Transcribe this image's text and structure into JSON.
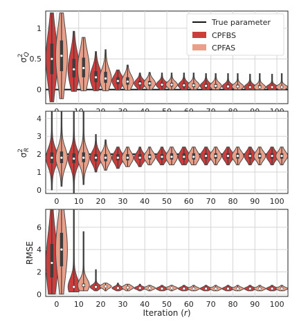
{
  "chart_data": {
    "type": "violin",
    "x_tick_labels": [
      "0",
      "10",
      "20",
      "30",
      "40",
      "50",
      "60",
      "70",
      "80",
      "90",
      "100"
    ],
    "xlabel": "Iteration (r)",
    "grid": true,
    "legend": {
      "placement": "top-right",
      "entries": [
        {
          "label": "True parameter",
          "kind": "line",
          "color": "#111111"
        },
        {
          "label": "CPFBS",
          "kind": "patch",
          "color": "#cc3d3d"
        },
        {
          "label": "CPFAS",
          "kind": "patch",
          "color": "#e8a08a"
        }
      ]
    },
    "panels": [
      {
        "ylabel": "σ_Q^2",
        "ylim": [
          -0.23,
          1.28
        ],
        "yticks": [
          0.0,
          0.5,
          1.0
        ],
        "true_value": 0.0,
        "series": [
          {
            "name": "CPFBS",
            "color": "#cc3d3d",
            "min": [
              -0.2,
              -0.03,
              -0.02,
              -0.01,
              0.0,
              0.0,
              0.0,
              0.0,
              0.0,
              0.0,
              0.0
            ],
            "max": [
              1.25,
              0.95,
              0.62,
              0.32,
              0.27,
              0.27,
              0.27,
              0.26,
              0.26,
              0.25,
              0.25
            ],
            "median": [
              0.5,
              0.33,
              0.2,
              0.14,
              0.1,
              0.08,
              0.07,
              0.06,
              0.05,
              0.04,
              0.04
            ],
            "q1": [
              0.25,
              0.2,
              0.12,
              0.09,
              0.07,
              0.05,
              0.04,
              0.03,
              0.03,
              0.02,
              0.02
            ],
            "q3": [
              0.75,
              0.5,
              0.3,
              0.2,
              0.14,
              0.11,
              0.1,
              0.09,
              0.08,
              0.07,
              0.06
            ]
          },
          {
            "name": "CPFAS",
            "color": "#e8a08a",
            "min": [
              -0.15,
              -0.02,
              -0.02,
              -0.01,
              0.0,
              0.0,
              0.0,
              0.0,
              0.0,
              0.0,
              0.0
            ],
            "max": [
              1.25,
              0.85,
              0.65,
              0.4,
              0.28,
              0.27,
              0.27,
              0.26,
              0.26,
              0.26,
              0.26
            ],
            "median": [
              0.55,
              0.35,
              0.18,
              0.13,
              0.1,
              0.08,
              0.07,
              0.06,
              0.05,
              0.04,
              0.04
            ],
            "q1": [
              0.3,
              0.2,
              0.11,
              0.08,
              0.06,
              0.05,
              0.04,
              0.03,
              0.03,
              0.02,
              0.02
            ],
            "q3": [
              0.8,
              0.52,
              0.29,
              0.2,
              0.14,
              0.11,
              0.1,
              0.09,
              0.08,
              0.07,
              0.06
            ]
          }
        ]
      },
      {
        "ylabel": "σ_R^2",
        "ylim": [
          -0.2,
          4.4
        ],
        "yticks": [
          0,
          1,
          2,
          3,
          4
        ],
        "true_value": 2.0,
        "series": [
          {
            "name": "CPFBS",
            "color": "#cc3d3d",
            "min": [
              0.0,
              -0.2,
              1.0,
              1.2,
              1.3,
              1.4,
              1.4,
              1.4,
              1.4,
              1.4,
              1.4
            ],
            "max": [
              4.4,
              4.4,
              3.1,
              2.4,
              2.4,
              2.4,
              2.4,
              2.4,
              2.4,
              2.4,
              2.4
            ],
            "median": [
              1.8,
              1.75,
              1.8,
              1.8,
              1.8,
              1.85,
              1.85,
              1.9,
              1.9,
              1.9,
              1.9
            ],
            "q1": [
              1.5,
              1.5,
              1.6,
              1.65,
              1.7,
              1.7,
              1.7,
              1.75,
              1.75,
              1.75,
              1.75
            ],
            "q3": [
              2.1,
              2.05,
              2.0,
              2.0,
              2.0,
              2.0,
              2.05,
              2.05,
              2.05,
              2.05,
              2.05
            ]
          },
          {
            "name": "CPFAS",
            "color": "#e8a08a",
            "min": [
              0.2,
              0.3,
              1.1,
              1.3,
              1.4,
              1.4,
              1.4,
              1.4,
              1.4,
              1.4,
              1.4
            ],
            "max": [
              4.4,
              4.4,
              2.8,
              2.4,
              2.4,
              2.4,
              2.4,
              2.4,
              2.4,
              2.4,
              2.4
            ],
            "median": [
              1.8,
              1.8,
              1.8,
              1.8,
              1.85,
              1.85,
              1.85,
              1.9,
              1.9,
              1.9,
              1.9
            ],
            "q1": [
              1.5,
              1.55,
              1.6,
              1.65,
              1.7,
              1.7,
              1.7,
              1.75,
              1.75,
              1.75,
              1.75
            ],
            "q3": [
              2.15,
              2.1,
              2.0,
              2.0,
              2.0,
              2.05,
              2.05,
              2.05,
              2.05,
              2.05,
              2.05
            ]
          }
        ]
      },
      {
        "ylabel": "RMSE",
        "ylim": [
          -0.2,
          7.6
        ],
        "yticks": [
          0,
          2,
          4,
          6
        ],
        "true_value": null,
        "series": [
          {
            "name": "CPFBS",
            "color": "#cc3d3d",
            "min": [
              0.0,
              0.2,
              0.3,
              0.3,
              0.3,
              0.3,
              0.3,
              0.3,
              0.3,
              0.3,
              0.3
            ],
            "max": [
              7.6,
              7.6,
              2.2,
              1.0,
              0.9,
              0.8,
              0.8,
              0.8,
              0.8,
              0.8,
              0.8
            ],
            "median": [
              2.8,
              0.65,
              0.65,
              0.55,
              0.55,
              0.5,
              0.5,
              0.5,
              0.5,
              0.5,
              0.5
            ],
            "q1": [
              1.5,
              0.55,
              0.55,
              0.48,
              0.48,
              0.45,
              0.45,
              0.45,
              0.45,
              0.45,
              0.45
            ],
            "q3": [
              4.5,
              0.75,
              0.78,
              0.65,
              0.62,
              0.6,
              0.6,
              0.6,
              0.6,
              0.6,
              0.6
            ]
          },
          {
            "name": "CPFAS",
            "color": "#e8a08a",
            "min": [
              0.0,
              0.3,
              0.3,
              0.3,
              0.3,
              0.3,
              0.3,
              0.3,
              0.3,
              0.3,
              0.3
            ],
            "max": [
              7.6,
              5.6,
              1.0,
              0.9,
              0.8,
              0.8,
              0.8,
              0.8,
              0.8,
              0.8,
              0.8
            ],
            "median": [
              4.0,
              0.8,
              0.7,
              0.6,
              0.55,
              0.55,
              0.5,
              0.5,
              0.5,
              0.5,
              0.5
            ],
            "q1": [
              2.5,
              0.65,
              0.6,
              0.5,
              0.5,
              0.48,
              0.45,
              0.45,
              0.45,
              0.45,
              0.45
            ],
            "q3": [
              5.5,
              0.95,
              0.8,
              0.7,
              0.65,
              0.62,
              0.6,
              0.6,
              0.6,
              0.6,
              0.6
            ]
          }
        ]
      }
    ]
  }
}
